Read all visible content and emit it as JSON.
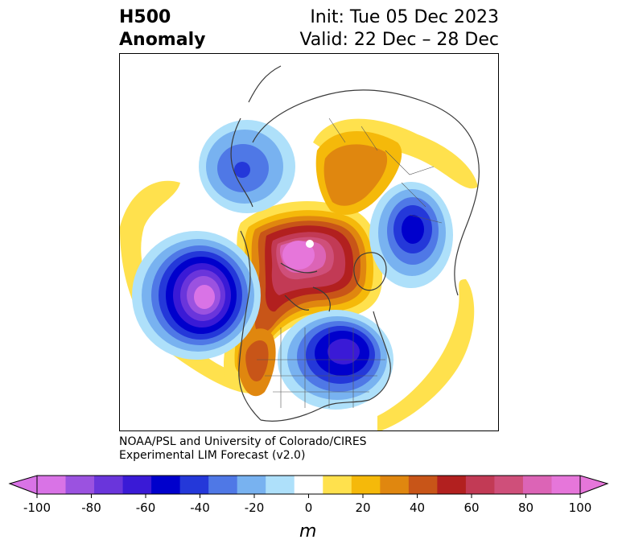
{
  "title": {
    "left_line1": "H500",
    "left_line2": "Anomaly",
    "right_line1": "Init: Tue 05 Dec 2023",
    "right_line2": "Valid: 22 Dec – 28 Dec"
  },
  "credit": {
    "line1": "NOAA/PSL and University of Colorado/CIRES",
    "line2": "Experimental LIM Forecast (v2.0)"
  },
  "colorbar": {
    "unit_label": "m",
    "ticks": [
      "-100",
      "-80",
      "-60",
      "-40",
      "-20",
      "0",
      "20",
      "40",
      "60",
      "80",
      "100"
    ],
    "levels": [
      -100,
      -90,
      -80,
      -70,
      -60,
      -50,
      -40,
      -30,
      -20,
      -10,
      10,
      20,
      30,
      40,
      50,
      60,
      70,
      80,
      90,
      100
    ],
    "colors": [
      "#d973e6",
      "#9b52e0",
      "#6a35db",
      "#3a1ad6",
      "#0000cc",
      "#2438d9",
      "#4f78e6",
      "#78b2f0",
      "#aee0fa",
      "#ffffff",
      "#ffe14d",
      "#f5b90a",
      "#e0870f",
      "#c85518",
      "#b2201f",
      "#c23a55",
      "#cf4f7a",
      "#dc64b6",
      "#e676da"
    ],
    "extend_low_color": "#d973e6",
    "extend_high_color": "#e676da"
  },
  "map": {
    "projection": "north-polar-stereographic",
    "anomaly_centers": [
      {
        "name": "pole-ridge",
        "value": 100
      },
      {
        "name": "scandinavia-ridge",
        "value": 40
      },
      {
        "name": "north-pacific-trough",
        "value": -100
      },
      {
        "name": "eastern-us-trough",
        "value": -80
      },
      {
        "name": "alaska-trough",
        "value": -40
      },
      {
        "name": "siberia-trough",
        "value": -60
      },
      {
        "name": "western-na-ridge",
        "value": 40
      }
    ]
  }
}
